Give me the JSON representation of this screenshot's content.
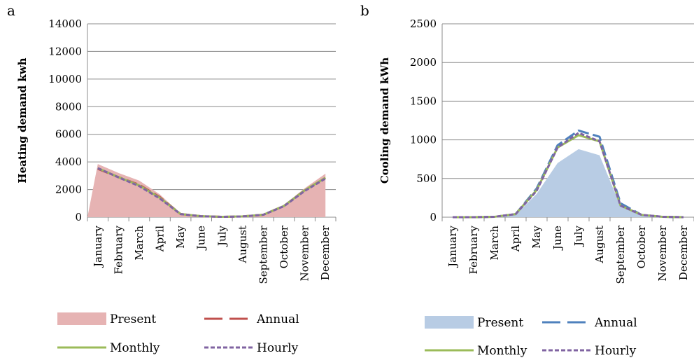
{
  "chart_data": [
    {
      "type": "area",
      "panel_label": "a",
      "title": "",
      "xlabel": "",
      "ylabel": "Heating demand kwh",
      "ylim": [
        0,
        14000
      ],
      "yticks": [
        0,
        2000,
        4000,
        6000,
        8000,
        10000,
        12000,
        14000
      ],
      "grid": true,
      "categories": [
        "January",
        "February",
        "March",
        "April",
        "May",
        "June",
        "July",
        "August",
        "September",
        "October",
        "November",
        "December"
      ],
      "series": [
        {
          "name": "Present",
          "style": "area",
          "color": "#e6b3b3",
          "values": [
            3850,
            3200,
            2650,
            1650,
            250,
            80,
            30,
            60,
            200,
            900,
            2100,
            3150
          ]
        },
        {
          "name": "Annual",
          "style": "dashed",
          "color": "#c0504d",
          "values": [
            3500,
            2900,
            2350,
            1450,
            230,
            70,
            25,
            55,
            180,
            820,
            1950,
            2850
          ]
        },
        {
          "name": "Monthly",
          "style": "solid",
          "color": "#9bbb59",
          "values": [
            3550,
            2900,
            2300,
            1400,
            230,
            70,
            25,
            55,
            180,
            820,
            1950,
            2850
          ]
        },
        {
          "name": "Hourly",
          "style": "dotted",
          "color": "#8064a2",
          "values": [
            3550,
            2880,
            2250,
            1350,
            220,
            65,
            25,
            50,
            175,
            800,
            1900,
            2800
          ]
        }
      ],
      "legend": "bottom"
    },
    {
      "type": "area",
      "panel_label": "b",
      "title": "",
      "xlabel": "",
      "ylabel": "Cooling demand kWh",
      "ylim": [
        0,
        2500
      ],
      "yticks": [
        0,
        500,
        1000,
        1500,
        2000,
        2500
      ],
      "grid": true,
      "categories": [
        "January",
        "February",
        "March",
        "April",
        "May",
        "June",
        "July",
        "August",
        "September",
        "October",
        "November",
        "December"
      ],
      "series": [
        {
          "name": "Present",
          "style": "area",
          "color": "#b8cce4",
          "values": [
            0,
            0,
            5,
            30,
            300,
            700,
            880,
            800,
            140,
            25,
            5,
            0
          ]
        },
        {
          "name": "Annual",
          "style": "dashed",
          "color": "#4f81bd",
          "values": [
            0,
            0,
            5,
            40,
            370,
            930,
            1120,
            1040,
            180,
            30,
            5,
            0
          ]
        },
        {
          "name": "Monthly",
          "style": "solid",
          "color": "#9bbb59",
          "values": [
            0,
            0,
            5,
            40,
            350,
            900,
            1060,
            980,
            150,
            30,
            5,
            0
          ]
        },
        {
          "name": "Hourly",
          "style": "dotted",
          "color": "#8064a2",
          "values": [
            0,
            0,
            5,
            40,
            340,
            900,
            1090,
            980,
            150,
            30,
            5,
            0
          ]
        }
      ],
      "legend": "bottom"
    }
  ]
}
